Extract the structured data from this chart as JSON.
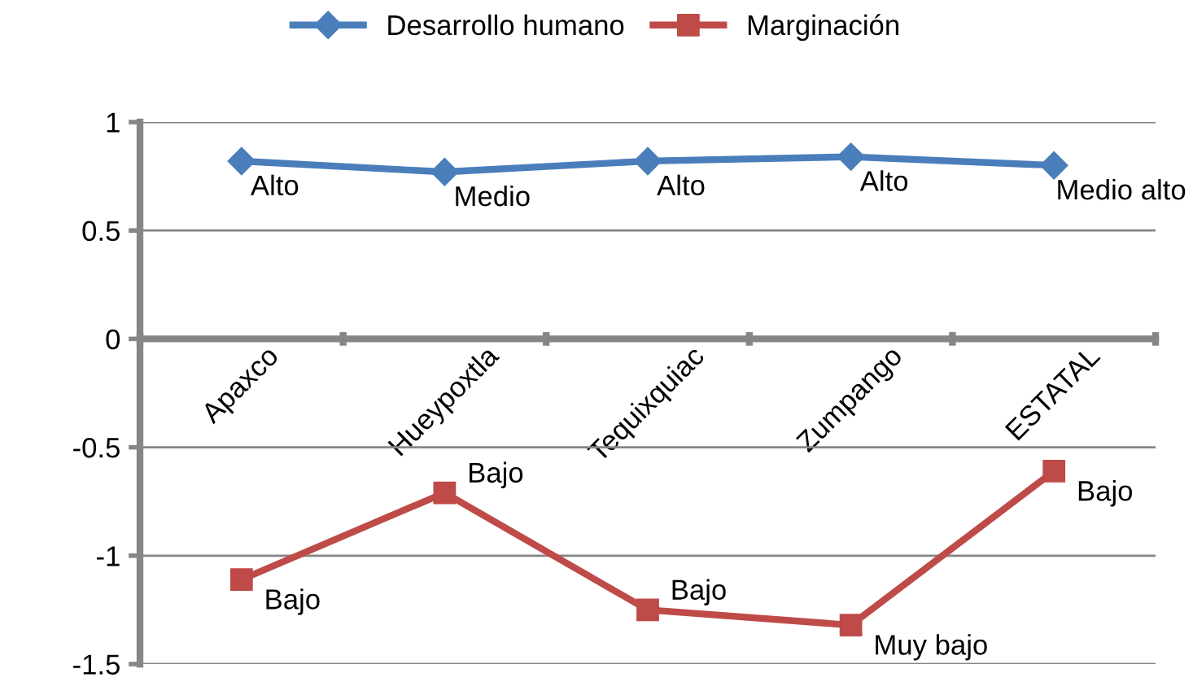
{
  "chart_data": {
    "type": "line",
    "categories": [
      "Apaxco",
      "Hueypoxtla",
      "Tequixquiac",
      "Zumpango",
      "ESTATAL"
    ],
    "series": [
      {
        "name": "Desarrollo humano",
        "color": "#4a7ebb",
        "marker": "diamond",
        "values": [
          0.82,
          0.77,
          0.82,
          0.84,
          0.8
        ],
        "value_labels": [
          "Alto",
          "Medio",
          "Alto",
          "Alto",
          "Medio alto"
        ]
      },
      {
        "name": "Marginación",
        "color": "#be4b48",
        "marker": "square",
        "values": [
          -1.11,
          -0.71,
          -1.25,
          -1.32,
          -0.61
        ],
        "value_labels": [
          "Bajo",
          "Bajo",
          "Bajo",
          "Muy bajo",
          "Bajo"
        ]
      }
    ],
    "ylim": [
      -1.5,
      1
    ],
    "yticks": [
      -1.5,
      -1,
      -0.5,
      0,
      0.5,
      1
    ],
    "grid": "y",
    "legend": "top"
  }
}
